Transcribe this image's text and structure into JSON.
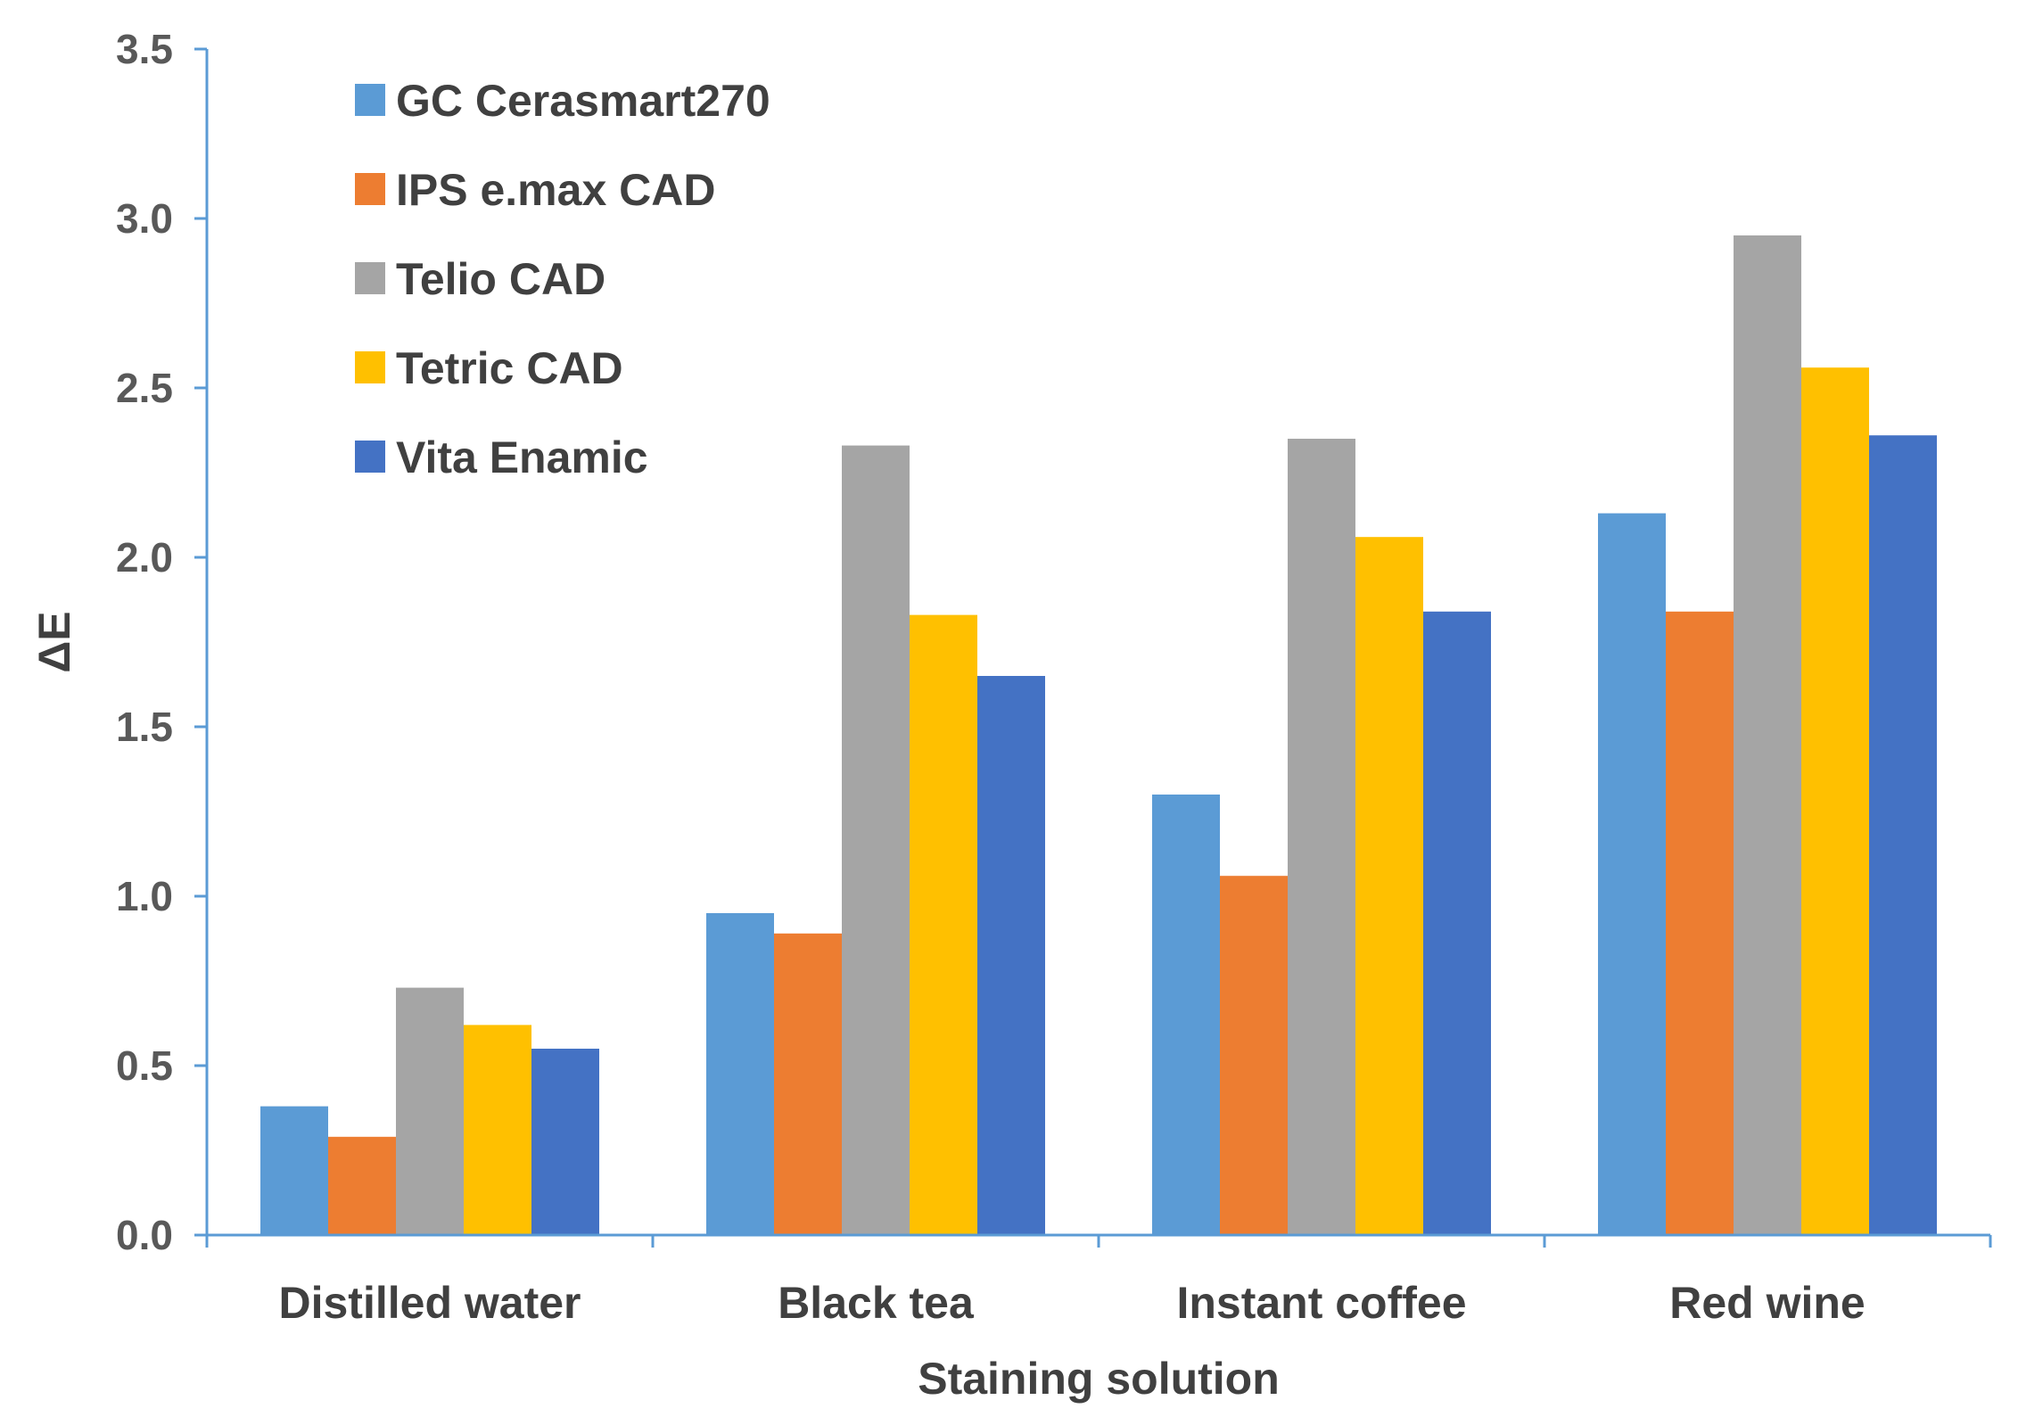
{
  "chart_data": {
    "type": "bar",
    "title": "",
    "xlabel": "Staining solution",
    "ylabel": "ΔE",
    "ylim": [
      0,
      3.5
    ],
    "yticks": [
      "0.0",
      "0.5",
      "1.0",
      "1.5",
      "2.0",
      "2.5",
      "3.0",
      "3.5"
    ],
    "ytick_values": [
      0,
      0.5,
      1.0,
      1.5,
      2.0,
      2.5,
      3.0,
      3.5
    ],
    "grid": false,
    "legend_position": "top-left",
    "categories": [
      "Distilled water",
      "Black tea",
      "Instant coffee",
      "Red wine"
    ],
    "series": [
      {
        "name": "GC Cerasmart270",
        "color": "#5B9BD5",
        "values": [
          0.38,
          0.95,
          1.3,
          2.13
        ]
      },
      {
        "name": "IPS e.max CAD",
        "color": "#ED7D31",
        "values": [
          0.29,
          0.89,
          1.06,
          1.84
        ]
      },
      {
        "name": "Telio CAD",
        "color": "#A5A5A5",
        "values": [
          0.73,
          2.33,
          2.35,
          2.95
        ]
      },
      {
        "name": "Tetric CAD",
        "color": "#FFC000",
        "values": [
          0.62,
          1.83,
          2.06,
          2.56
        ]
      },
      {
        "name": "Vita Enamic",
        "color": "#4472C4",
        "values": [
          0.55,
          1.65,
          1.84,
          2.36
        ]
      }
    ],
    "axis_color": "#5B9BD5"
  }
}
